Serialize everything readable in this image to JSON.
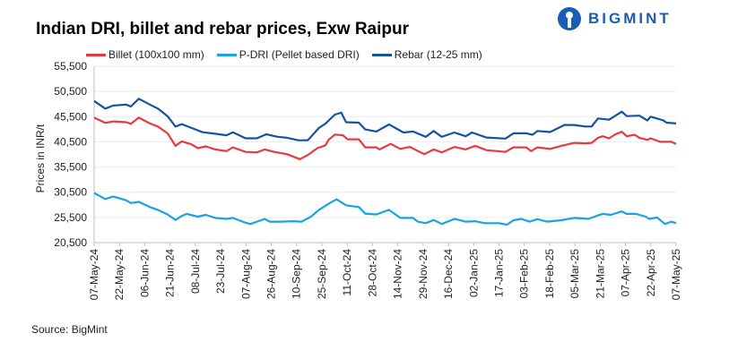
{
  "logo": {
    "text": "BIGMINT"
  },
  "source": "Source: BigMint",
  "colors": {
    "billet": "#e83a3e",
    "dri": "#1aa3e0",
    "rebar": "#1453a3",
    "grid": "#ececec",
    "axis": "#bfbfbf"
  },
  "chart_data": {
    "type": "line",
    "title": "Indian DRI, billet and rebar prices, Exw  Raipur",
    "xlabel": "",
    "ylabel": "Prices in INR/t",
    "ylim": [
      20500,
      55500
    ],
    "yticks": [
      "55,500",
      "50,500",
      "45,500",
      "40,500",
      "35,500",
      "30,500",
      "25,500",
      "20,500"
    ],
    "ytick_values": [
      55500,
      50500,
      45500,
      40500,
      35500,
      30500,
      25500,
      20500
    ],
    "xlim": [
      0,
      365
    ],
    "x_unit": "days since 07-May-24",
    "xticks": [
      "07-May-24",
      "22-May-24",
      "06-Jun-24",
      "21-Jun-24",
      "08-Jul-24",
      "23-Jul-24",
      "07-Aug-24",
      "26-Aug-24",
      "10-Sep-24",
      "25-Sep-24",
      "11-Oct-24",
      "28-Oct-24",
      "14-Nov-24",
      "29-Nov-24",
      "16-Dec-24",
      "02-Jan-25",
      "17-Jan-25",
      "03-Feb-25",
      "18-Feb-25",
      "05-Mar-25",
      "21-Mar-25",
      "07-Apr-25",
      "22-Apr-25",
      "07-May-25"
    ],
    "grid": true,
    "legend_position": "top",
    "series": [
      {
        "name": "Billet (100x100 mm)",
        "key": "billet",
        "points": [
          [
            0,
            45300
          ],
          [
            7,
            44250
          ],
          [
            12,
            44550
          ],
          [
            20,
            44400
          ],
          [
            23,
            44100
          ],
          [
            28,
            45300
          ],
          [
            35,
            44150
          ],
          [
            40,
            43550
          ],
          [
            46,
            42200
          ],
          [
            51,
            39700
          ],
          [
            55,
            40600
          ],
          [
            61,
            40000
          ],
          [
            65,
            39250
          ],
          [
            70,
            39600
          ],
          [
            76,
            39000
          ],
          [
            83,
            38650
          ],
          [
            87,
            39400
          ],
          [
            95,
            38500
          ],
          [
            102,
            38400
          ],
          [
            107,
            39000
          ],
          [
            113,
            38500
          ],
          [
            121,
            38050
          ],
          [
            129,
            37050
          ],
          [
            134,
            37900
          ],
          [
            140,
            39250
          ],
          [
            145,
            39800
          ],
          [
            147,
            40900
          ],
          [
            151,
            41950
          ],
          [
            156,
            41800
          ],
          [
            159,
            41000
          ],
          [
            166,
            41000
          ],
          [
            170,
            39400
          ],
          [
            177,
            39400
          ],
          [
            179,
            39000
          ],
          [
            186,
            40100
          ],
          [
            192,
            39100
          ],
          [
            198,
            39500
          ],
          [
            207,
            38050
          ],
          [
            213,
            39000
          ],
          [
            218,
            38400
          ],
          [
            226,
            39500
          ],
          [
            233,
            39000
          ],
          [
            239,
            39700
          ],
          [
            246,
            38850
          ],
          [
            258,
            38500
          ],
          [
            263,
            39400
          ],
          [
            271,
            39400
          ],
          [
            274,
            38650
          ],
          [
            278,
            39400
          ],
          [
            286,
            39100
          ],
          [
            293,
            39700
          ],
          [
            301,
            40300
          ],
          [
            308,
            40200
          ],
          [
            312,
            40300
          ],
          [
            316,
            41300
          ],
          [
            319,
            41600
          ],
          [
            323,
            41200
          ],
          [
            327,
            42000
          ],
          [
            331,
            42500
          ],
          [
            334,
            41600
          ],
          [
            339,
            41900
          ],
          [
            342,
            41300
          ],
          [
            347,
            40900
          ],
          [
            349,
            41200
          ],
          [
            355,
            40500
          ],
          [
            362,
            40500
          ],
          [
            365,
            40100
          ]
        ]
      },
      {
        "name": "P-DRI (Pellet based DRI)",
        "key": "dri",
        "points": [
          [
            0,
            30350
          ],
          [
            7,
            29150
          ],
          [
            12,
            29650
          ],
          [
            20,
            28900
          ],
          [
            23,
            28350
          ],
          [
            28,
            28600
          ],
          [
            35,
            27550
          ],
          [
            40,
            27000
          ],
          [
            46,
            26100
          ],
          [
            51,
            25000
          ],
          [
            55,
            25800
          ],
          [
            58,
            26200
          ],
          [
            65,
            25650
          ],
          [
            70,
            26000
          ],
          [
            76,
            25400
          ],
          [
            83,
            25200
          ],
          [
            87,
            25400
          ],
          [
            95,
            24450
          ],
          [
            98,
            24200
          ],
          [
            102,
            24650
          ],
          [
            107,
            25200
          ],
          [
            110,
            24650
          ],
          [
            117,
            24650
          ],
          [
            125,
            24750
          ],
          [
            130,
            24650
          ],
          [
            136,
            25650
          ],
          [
            141,
            27000
          ],
          [
            147,
            28200
          ],
          [
            152,
            29100
          ],
          [
            158,
            27900
          ],
          [
            166,
            27550
          ],
          [
            170,
            26250
          ],
          [
            177,
            26100
          ],
          [
            185,
            27000
          ],
          [
            192,
            25400
          ],
          [
            200,
            25400
          ],
          [
            203,
            24650
          ],
          [
            208,
            24350
          ],
          [
            213,
            25000
          ],
          [
            218,
            24200
          ],
          [
            226,
            25200
          ],
          [
            233,
            24650
          ],
          [
            239,
            24750
          ],
          [
            245,
            24350
          ],
          [
            254,
            24350
          ],
          [
            259,
            24050
          ],
          [
            263,
            24950
          ],
          [
            268,
            25200
          ],
          [
            273,
            24650
          ],
          [
            278,
            25150
          ],
          [
            284,
            24650
          ],
          [
            293,
            24950
          ],
          [
            301,
            25400
          ],
          [
            310,
            25200
          ],
          [
            316,
            25900
          ],
          [
            319,
            26200
          ],
          [
            324,
            26000
          ],
          [
            331,
            26700
          ],
          [
            334,
            26200
          ],
          [
            340,
            26200
          ],
          [
            346,
            25650
          ],
          [
            348,
            25200
          ],
          [
            353,
            25500
          ],
          [
            358,
            24200
          ],
          [
            362,
            24650
          ],
          [
            365,
            24350
          ]
        ]
      },
      {
        "name": "Rebar (12-25 mm)",
        "key": "rebar",
        "points": [
          [
            0,
            48600
          ],
          [
            7,
            47100
          ],
          [
            12,
            47700
          ],
          [
            20,
            47900
          ],
          [
            23,
            47500
          ],
          [
            28,
            49050
          ],
          [
            35,
            47900
          ],
          [
            40,
            47100
          ],
          [
            46,
            45600
          ],
          [
            51,
            43550
          ],
          [
            55,
            44000
          ],
          [
            61,
            43250
          ],
          [
            68,
            42400
          ],
          [
            76,
            42100
          ],
          [
            83,
            41800
          ],
          [
            87,
            42400
          ],
          [
            95,
            41200
          ],
          [
            102,
            41200
          ],
          [
            108,
            42000
          ],
          [
            115,
            41500
          ],
          [
            121,
            41300
          ],
          [
            128,
            40800
          ],
          [
            134,
            40800
          ],
          [
            141,
            43250
          ],
          [
            145,
            44100
          ],
          [
            151,
            45900
          ],
          [
            155,
            46300
          ],
          [
            158,
            44400
          ],
          [
            166,
            44300
          ],
          [
            170,
            42950
          ],
          [
            177,
            42550
          ],
          [
            185,
            43950
          ],
          [
            194,
            42350
          ],
          [
            200,
            42550
          ],
          [
            208,
            41500
          ],
          [
            213,
            42650
          ],
          [
            218,
            41500
          ],
          [
            226,
            42350
          ],
          [
            233,
            41600
          ],
          [
            237,
            42350
          ],
          [
            246,
            41350
          ],
          [
            258,
            41150
          ],
          [
            263,
            42200
          ],
          [
            271,
            42200
          ],
          [
            275,
            41900
          ],
          [
            278,
            42650
          ],
          [
            286,
            42450
          ],
          [
            295,
            43850
          ],
          [
            301,
            43850
          ],
          [
            308,
            43550
          ],
          [
            312,
            43550
          ],
          [
            316,
            45150
          ],
          [
            323,
            44900
          ],
          [
            331,
            46500
          ],
          [
            334,
            45600
          ],
          [
            342,
            45700
          ],
          [
            347,
            44750
          ],
          [
            349,
            45500
          ],
          [
            357,
            44750
          ],
          [
            359,
            44300
          ],
          [
            365,
            44150
          ]
        ]
      }
    ]
  }
}
